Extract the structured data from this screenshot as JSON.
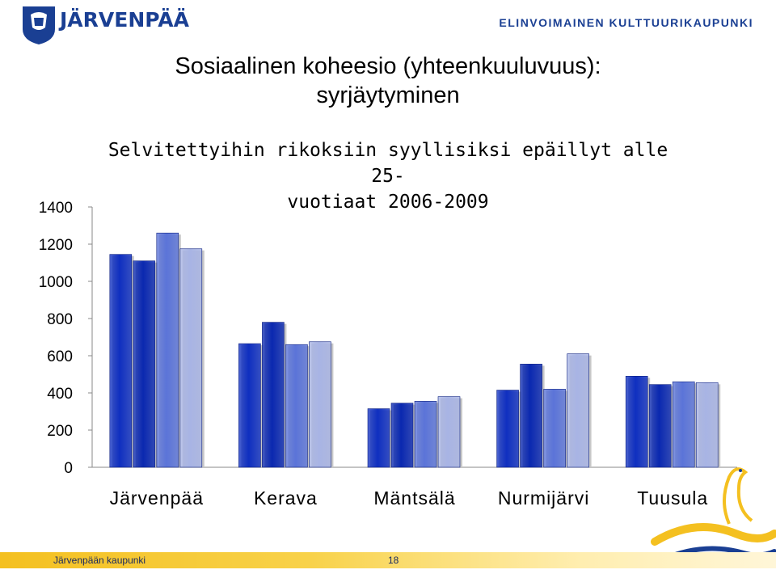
{
  "header": {
    "logo_text": "JÄRVENPÄÄ",
    "slogan": "ELINVOIMAINEN KULTTUURIKAUPUNKI"
  },
  "slide": {
    "title_line1": "Sosiaalinen koheesio (yhteenkuuluvuus):",
    "title_line2": "syrjäytyminen"
  },
  "footer": {
    "left": "Järvenpään kaupunki",
    "page": "18"
  },
  "colors": {
    "brand": "#1a3f93",
    "series": [
      "#0f2fc0",
      "#0a28b0",
      "#5b74d8",
      "#a8b4e4"
    ]
  },
  "chart_data": {
    "type": "bar",
    "title_line1": "Selvitettyihin rikoksiin syyllisiksi epäillyt alle 25-",
    "title_line2": "vuotiaat 2006-2009",
    "categories": [
      "Järvenpää",
      "Kerava",
      "Mäntsälä",
      "Nurmijärvi",
      "Tuusula"
    ],
    "series": [
      {
        "values": [
          1145,
          665,
          315,
          415,
          490
        ]
      },
      {
        "values": [
          1110,
          780,
          345,
          555,
          445
        ]
      },
      {
        "values": [
          1260,
          660,
          355,
          420,
          460
        ]
      },
      {
        "values": [
          1175,
          675,
          380,
          610,
          455
        ]
      }
    ],
    "ylim": [
      0,
      1400
    ],
    "yticks": [
      0,
      200,
      400,
      600,
      800,
      1000,
      1200,
      1400
    ],
    "grid": false
  }
}
